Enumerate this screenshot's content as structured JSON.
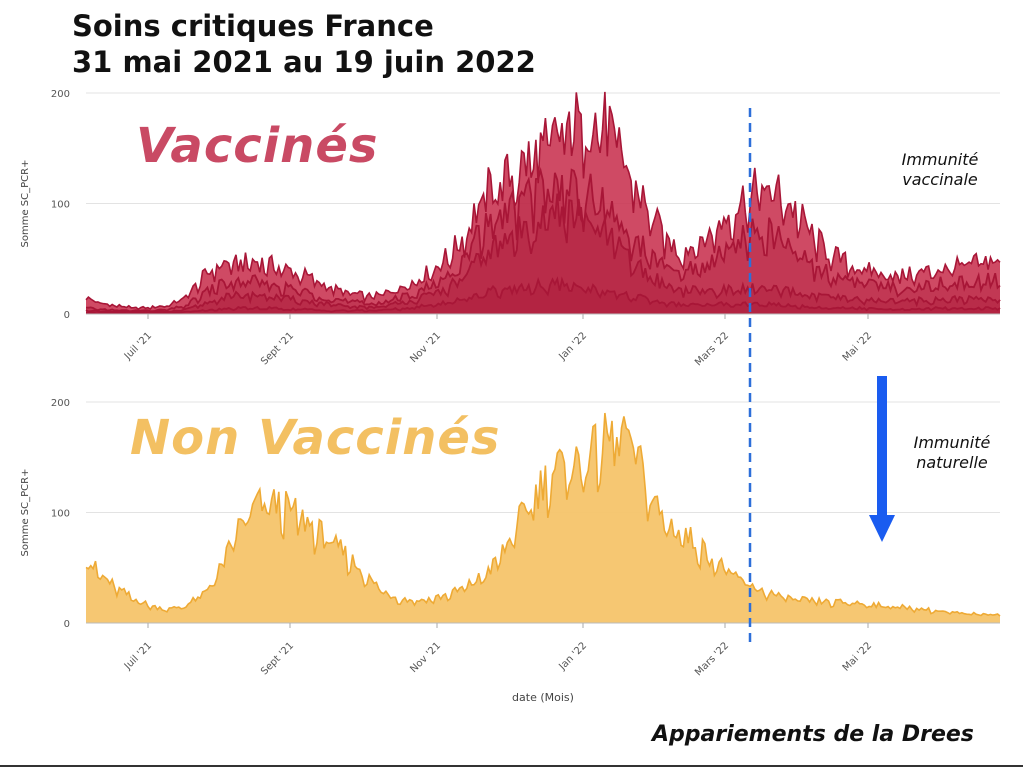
{
  "title_line1": "Soins critiques France",
  "title_line2": "31 mai 2021 au 19 juin 2022",
  "source": "Appariements de la Drees",
  "colors": {
    "vaccinated_fill": "#c8314f",
    "vaccinated_line": "#a81637",
    "vaccinated_label": "#c94a64",
    "unvaccinated_fill": "#f5c46a",
    "unvaccinated_line": "#eeaa35",
    "unvaccinated_label": "#f3c062",
    "marker_line": "#2d6fd9",
    "arrow": "#1a5cf0"
  },
  "chart_data": [
    {
      "type": "area",
      "name": "vaccinated",
      "label": "Vaccinés",
      "annotation_line1": "Immunité",
      "annotation_line2": "vaccinale",
      "ylabel": "Somme SC_PCR+",
      "ylim": [
        0,
        200
      ],
      "yticks": [
        "0",
        "100",
        "200"
      ],
      "xticks": [
        "Juil '21",
        "Sept '21",
        "Nov '21",
        "Jan '22",
        "Mars '22",
        "Mai '22"
      ],
      "x_start": "31 mai 2021",
      "x_end": "19 juin 2022",
      "total_weekly": [
        14,
        9,
        7,
        5,
        6,
        8,
        16,
        33,
        44,
        43,
        46,
        42,
        38,
        33,
        26,
        20,
        17,
        15,
        20,
        26,
        34,
        45,
        60,
        88,
        112,
        118,
        132,
        142,
        155,
        165,
        172,
        158,
        125,
        96,
        70,
        55,
        60,
        70,
        88,
        102,
        108,
        104,
        88,
        66,
        52,
        44,
        38,
        36,
        33,
        35,
        38,
        40,
        42,
        45,
        48
      ],
      "sub_layers_weekly": [
        [
          5,
          4,
          3,
          3,
          3,
          4,
          8,
          18,
          26,
          27,
          28,
          25,
          22,
          19,
          15,
          12,
          10,
          9,
          12,
          16,
          22,
          30,
          42,
          62,
          82,
          90,
          100,
          108,
          112,
          108,
          100,
          88,
          70,
          55,
          42,
          36,
          40,
          46,
          58,
          68,
          70,
          66,
          55,
          42,
          34,
          29,
          26,
          25,
          23,
          24,
          26,
          27,
          28,
          29,
          30
        ],
        [
          3,
          2,
          2,
          2,
          2,
          2,
          4,
          9,
          14,
          16,
          17,
          15,
          13,
          11,
          9,
          7,
          6,
          6,
          8,
          11,
          15,
          20,
          28,
          42,
          58,
          64,
          74,
          84,
          88,
          84,
          78,
          64,
          48,
          36,
          27,
          22,
          20,
          20,
          21,
          22,
          22,
          20,
          18,
          16,
          14,
          13,
          12,
          12,
          11,
          12,
          12,
          13,
          13,
          13,
          14
        ],
        [
          1,
          1,
          1,
          1,
          1,
          1,
          2,
          3,
          4,
          5,
          5,
          5,
          4,
          4,
          3,
          3,
          3,
          3,
          4,
          5,
          7,
          9,
          12,
          16,
          20,
          22,
          24,
          25,
          25,
          24,
          22,
          19,
          16,
          13,
          10,
          8,
          8,
          8,
          9,
          9,
          9,
          8,
          7,
          6,
          5,
          5,
          5,
          4,
          4,
          4,
          5,
          5,
          5,
          5,
          5
        ]
      ],
      "marker": "Mars '22"
    },
    {
      "type": "area",
      "name": "unvaccinated",
      "label": "Non Vaccinés",
      "annotation_line1": "Immunité",
      "annotation_line2": "naturelle",
      "ylabel": "Somme SC_PCR+",
      "xlabel": "date (Mois)",
      "ylim": [
        0,
        200
      ],
      "yticks": [
        "0",
        "100",
        "200"
      ],
      "xticks": [
        "Juil '21",
        "Sept '21",
        "Nov '21",
        "Jan '22",
        "Mars '22",
        "Mai '22"
      ],
      "x_start": "31 mai 2021",
      "x_end": "19 juin 2022",
      "total_weekly": [
        56,
        40,
        28,
        20,
        14,
        12,
        16,
        26,
        48,
        82,
        102,
        104,
        98,
        88,
        76,
        64,
        50,
        34,
        24,
        20,
        20,
        23,
        28,
        36,
        48,
        70,
        100,
        122,
        136,
        138,
        148,
        162,
        166,
        125,
        92,
        80,
        70,
        56,
        44,
        34,
        28,
        23,
        20,
        19,
        18,
        18,
        17,
        15,
        14,
        13,
        11,
        9,
        8,
        8,
        8
      ],
      "marker": "Mars '22"
    }
  ]
}
